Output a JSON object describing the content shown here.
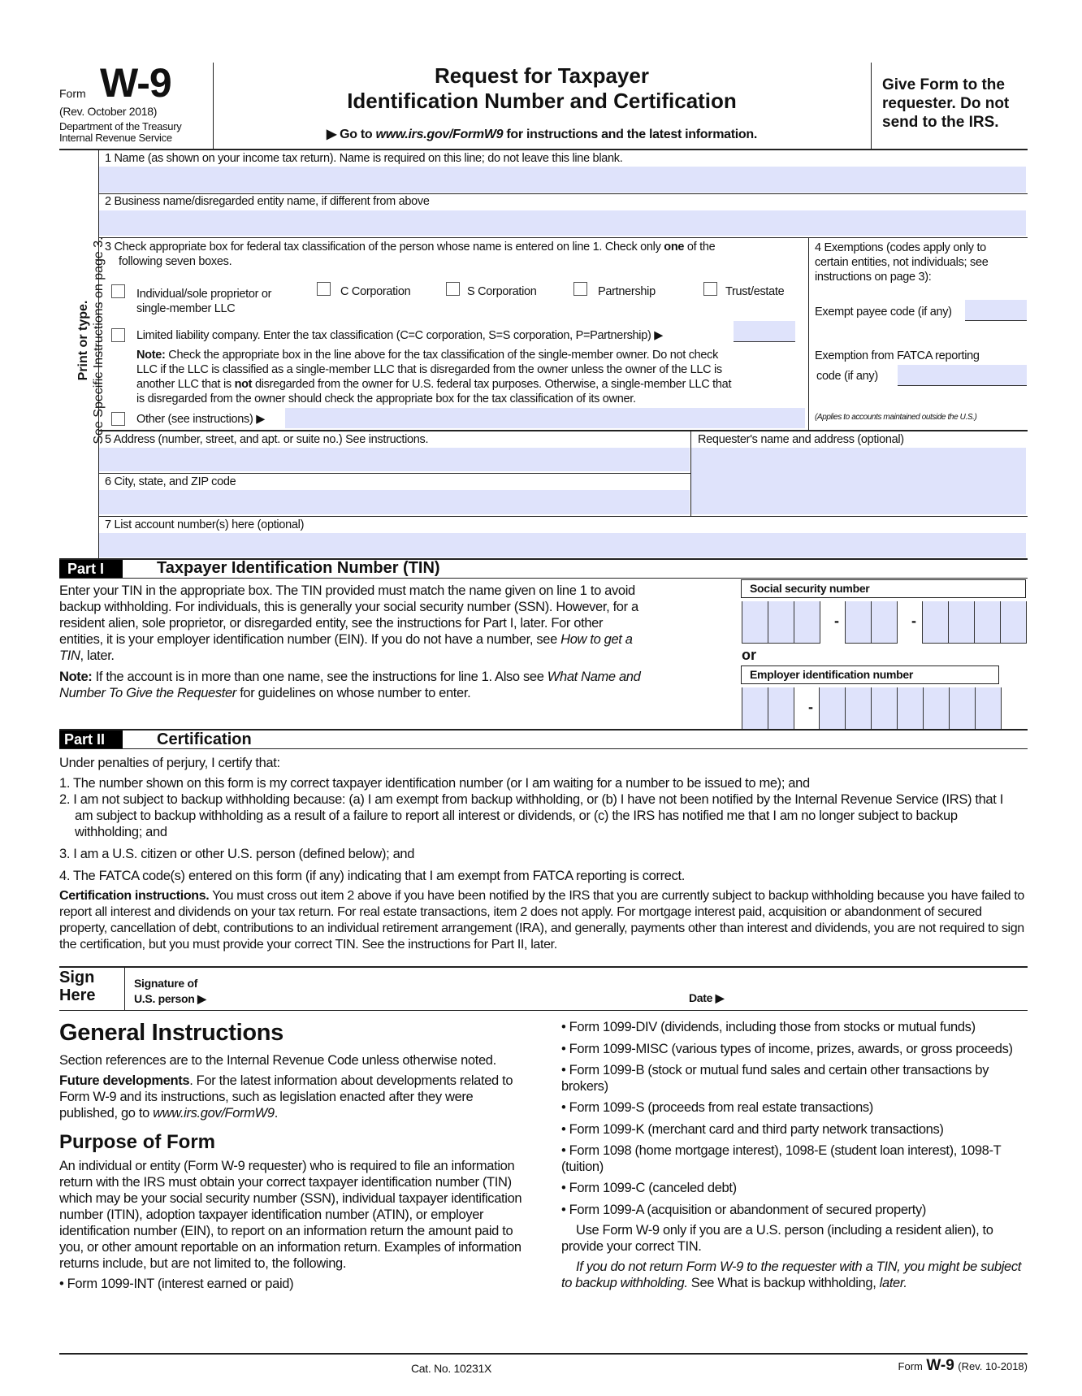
{
  "header": {
    "form_word": "Form",
    "form_number": "W-9",
    "revision": "(Rev. October 2018)",
    "dept_line1": "Department of the Treasury",
    "dept_line2": "Internal Revenue Service",
    "title_line1": "Request for Taxpayer",
    "title_line2": "Identification Number and Certification",
    "goto_prefix": "▶ Go to ",
    "goto_url": "www.irs.gov/FormW9",
    "goto_suffix": " for instructions and the latest information.",
    "give_form": [
      "Give Form to the",
      "requester. Do not",
      "send to the IRS."
    ]
  },
  "sidebar": {
    "line1": "Print or type.",
    "line2": "See Specific Instructions on page 3."
  },
  "lines": {
    "l1": "1  Name (as shown on your income tax return). Name is required on this line; do not leave this line blank.",
    "l2": "2  Business name/disregarded entity name, if different from above",
    "l3a": "3  Check appropriate box for federal tax classification of the person whose name is entered on line 1. Check only ",
    "l3b": "one",
    "l3c": " of the",
    "l3d": "following seven boxes.",
    "checkboxes": [
      "Individual/sole proprietor or",
      "C Corporation",
      "S Corporation",
      "Partnership",
      "Trust/estate"
    ],
    "single_member": "single-member LLC",
    "llc": "Limited liability company. Enter the tax classification (C=C corporation, S=S corporation, P=Partnership) ▶",
    "note_label": "Note:",
    "note": [
      " Check the appropriate box in the line above for the tax classification of the single-member owner.  Do not check",
      "LLC if the LLC is classified as a single-member LLC that is disregarded from the owner unless the owner of the LLC is",
      "another LLC that is ",
      "not",
      " disregarded from the owner for U.S. federal tax purposes. Otherwise, a single-member LLC that",
      "is disregarded from the owner should check the appropriate box for the tax classification of its owner."
    ],
    "other": "Other (see instructions) ▶",
    "l4": [
      "4  Exemptions (codes apply only to",
      "certain entities, not individuals; see",
      "instructions on page 3):"
    ],
    "exempt_payee": "Exempt payee code (if any)",
    "fatca1": "Exemption from FATCA reporting",
    "fatca2": "code (if any)",
    "applies": "(Applies to accounts maintained outside the U.S.)",
    "l5": "5  Address (number, street, and apt. or suite no.) See instructions.",
    "requester": "Requester's name and address (optional)",
    "l6": "6  City, state, and ZIP code",
    "l7": "7  List account number(s) here (optional)"
  },
  "part1": {
    "label": "Part I",
    "title": "Taxpayer Identification Number (TIN)",
    "text": [
      "Enter your TIN in the appropriate box. The TIN provided must match the name given on line 1 to avoid",
      "backup withholding. For individuals, this is generally your social security number (SSN). However, for a",
      "resident alien, sole proprietor, or disregarded entity, see the instructions for Part I, later. For other",
      "entities, it is your employer identification number (EIN). If you do not have a number, see ",
      "How to get a",
      "TIN",
      ", later."
    ],
    "note_label": "Note:",
    "note": [
      " If the account is in more than one name, see the instructions for line 1. Also see ",
      "What Name and",
      "Number To Give the Requester",
      " for guidelines on whose number to enter."
    ],
    "ssn_label": "Social security number",
    "or": "or",
    "ein_label": "Employer identification number",
    "dash": "-"
  },
  "part2": {
    "label": "Part II",
    "title": "Certification",
    "intro": "Under penalties of perjury, I certify that:",
    "items": [
      "1. The number shown on this form is my correct taxpayer identification number (or I am waiting for a number to be issued to me); and",
      "2. I am not subject to backup withholding because: (a) I am exempt from backup withholding, or (b) I have not been notified by the Internal Revenue Service (IRS) that I am subject to backup withholding as a result of a failure to report all interest or dividends, or (c) the IRS has notified me that I am no longer subject to backup withholding; and",
      "3. I am a U.S. citizen or other U.S. person (defined below); and",
      "4. The FATCA code(s) entered on this form (if any) indicating that I am exempt from FATCA reporting is correct."
    ],
    "cert_label": "Certification instructions.",
    "cert_text": " You must cross out item 2 above if you have been notified by the IRS that you are currently subject to backup withholding because you have failed to report all interest and dividends on your tax return. For real estate transactions, item 2 does not apply. For mortgage interest paid, acquisition or abandonment of secured property, cancellation of debt, contributions to an individual retirement arrangement (IRA), and generally, payments other than interest and dividends, you are not required to sign the certification, but you must provide your correct TIN. See the instructions for Part II, later."
  },
  "sign": {
    "sign": "Sign",
    "here": "Here",
    "sig1": "Signature of",
    "sig2": "U.S. person ▶",
    "date": "Date ▶"
  },
  "instructions": {
    "heading": "General Instructions",
    "section_refs": "Section references are to the Internal Revenue Code unless otherwise noted.",
    "future_label": "Future developments",
    "future_text": ". For the latest information about developments related to Form W-9 and its instructions, such as legislation enacted after they were published, go to ",
    "future_url": "www.irs.gov/FormW9",
    "purpose_heading": "Purpose of Form",
    "purpose_text": "An individual or entity (Form W-9 requester) who is required to file an information return with the IRS must obtain your correct taxpayer identification number (TIN) which may be your social security number (SSN), individual taxpayer identification number (ITIN), adoption taxpayer identification number (ATIN), or employer identification number (EIN), to report on an information return the amount paid to you, or other amount reportable on an information return. Examples of information returns include, but are not limited to, the following.",
    "left_bullet": "• Form 1099-INT (interest earned or paid)",
    "bullets": [
      "• Form 1099-DIV (dividends, including those from stocks or mutual funds)",
      "• Form 1099-MISC (various types of income, prizes, awards, or gross proceeds)",
      "• Form 1099-B (stock or mutual fund sales and certain other transactions by brokers)",
      "• Form 1099-S (proceeds from real estate transactions)",
      "• Form 1099-K (merchant card and third party network transactions)",
      "• Form 1098 (home mortgage interest), 1098-E (student loan interest), 1098-T (tuition)",
      "• Form 1099-C (canceled debt)",
      "• Form 1099-A (acquisition or abandonment of secured property)"
    ],
    "use_form": "Use Form W-9 only if you are a U.S. person (including a resident alien), to provide your correct TIN.",
    "warn_italic": "If you do not return Form W-9 to the requester with a TIN, you might be subject to backup withholding.",
    "warn_see": " See What is backup withholding, ",
    "warn_later": "later."
  },
  "footer": {
    "cat": "Cat. No. 10231X",
    "form_word": "Form",
    "form_number": "W-9",
    "rev": "(Rev. 10-2018)"
  },
  "colors": {
    "field_fill": "#dfe3fb",
    "part_label_bg": "#000000"
  }
}
